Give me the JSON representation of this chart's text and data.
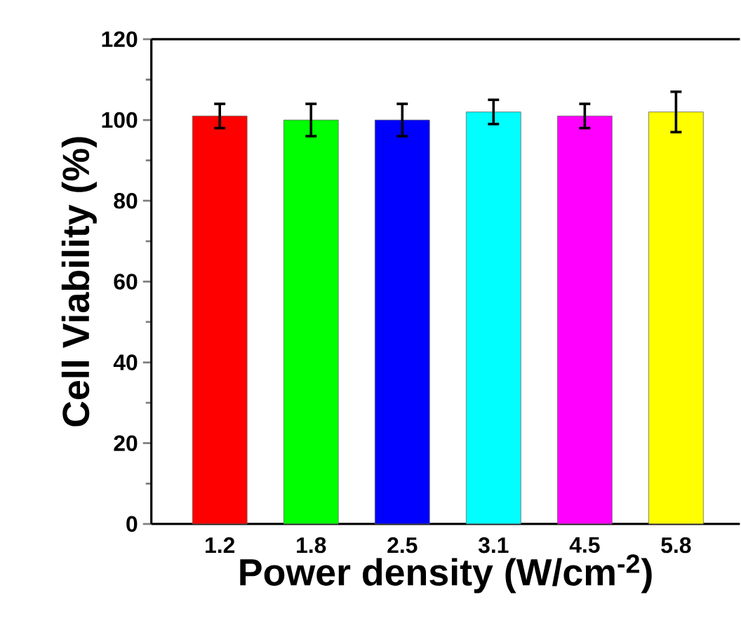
{
  "chart_data": {
    "type": "bar",
    "xlabel": "Power density (W/cm$^{-2}$)",
    "ylabel": "Cell Viability (%)",
    "categories": [
      "1.2",
      "1.8",
      "2.5",
      "3.1",
      "4.5",
      "5.8"
    ],
    "values": [
      101,
      100,
      100,
      102,
      101,
      102
    ],
    "errors": [
      3,
      4,
      4,
      3,
      3,
      5
    ],
    "colors": [
      "#ff0000",
      "#00ff00",
      "#0000ff",
      "#00ffff",
      "#ff00ff",
      "#ffff00"
    ],
    "ylim": [
      0,
      120
    ],
    "yticks": [
      0,
      20,
      40,
      60,
      80,
      100,
      120
    ]
  }
}
